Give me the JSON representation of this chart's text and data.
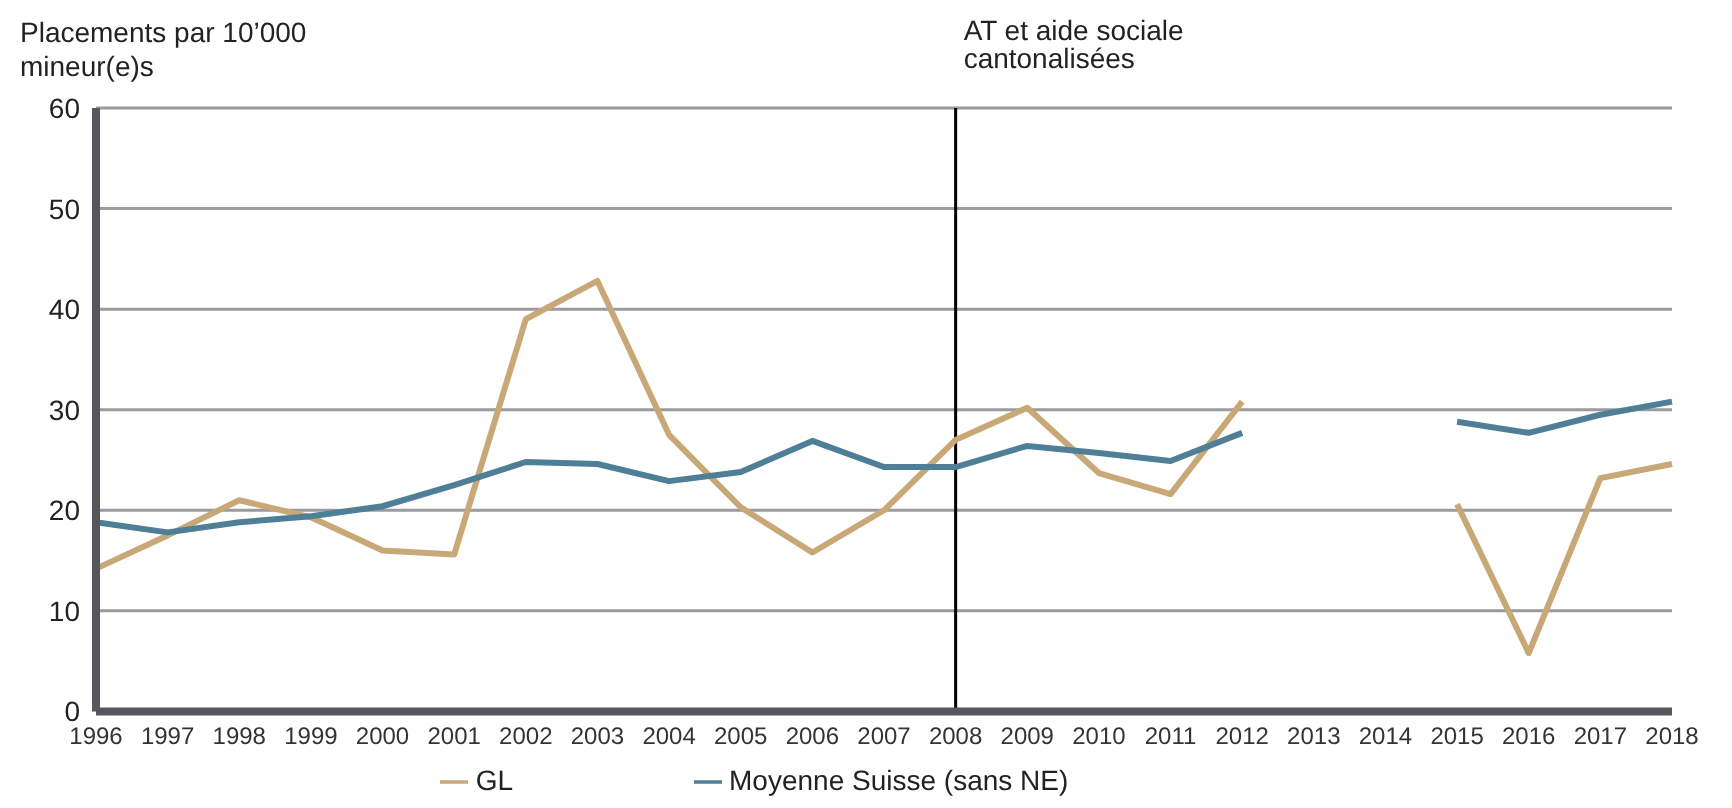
{
  "chart_data": {
    "type": "line",
    "ylabel": "Placements par 10’000 mineur(e)s",
    "categories": [
      "1996",
      "1997",
      "1998",
      "1999",
      "2000",
      "2001",
      "2002",
      "2003",
      "2004",
      "2005",
      "2006",
      "2007",
      "2008",
      "2009",
      "2010",
      "2011",
      "2012",
      "2013",
      "2014",
      "2015",
      "2016",
      "2017",
      "2018"
    ],
    "series": [
      {
        "name": "GL",
        "color": "#c9a877",
        "values": [
          14.2,
          17.5,
          21,
          19.3,
          16,
          15.6,
          39,
          42.8,
          27.5,
          20.3,
          15.8,
          20,
          27,
          30.2,
          23.7,
          21.6,
          30.8,
          null,
          null,
          20.6,
          5.8,
          23.2,
          24.6
        ]
      },
      {
        "name": "Moyenne Suisse (sans NE)",
        "color": "#4e7f96",
        "values": [
          18.8,
          17.8,
          18.8,
          19.4,
          20.4,
          22.5,
          24.8,
          24.6,
          22.9,
          23.8,
          26.9,
          24.3,
          24.3,
          26.4,
          25.7,
          24.9,
          27.7,
          null,
          null,
          28.8,
          27.7,
          29.5,
          30.8
        ]
      }
    ],
    "ylim": [
      0,
      60
    ],
    "yticks": [
      0,
      10,
      20,
      30,
      40,
      50,
      60
    ],
    "grid": "y",
    "legend": "bottom",
    "marker": "none",
    "line_style": "solid",
    "ref_lines": [
      {
        "axis": "x",
        "value": "2008",
        "label": "AT et aide sociale cantonalisées",
        "color": "#000000"
      }
    ]
  }
}
